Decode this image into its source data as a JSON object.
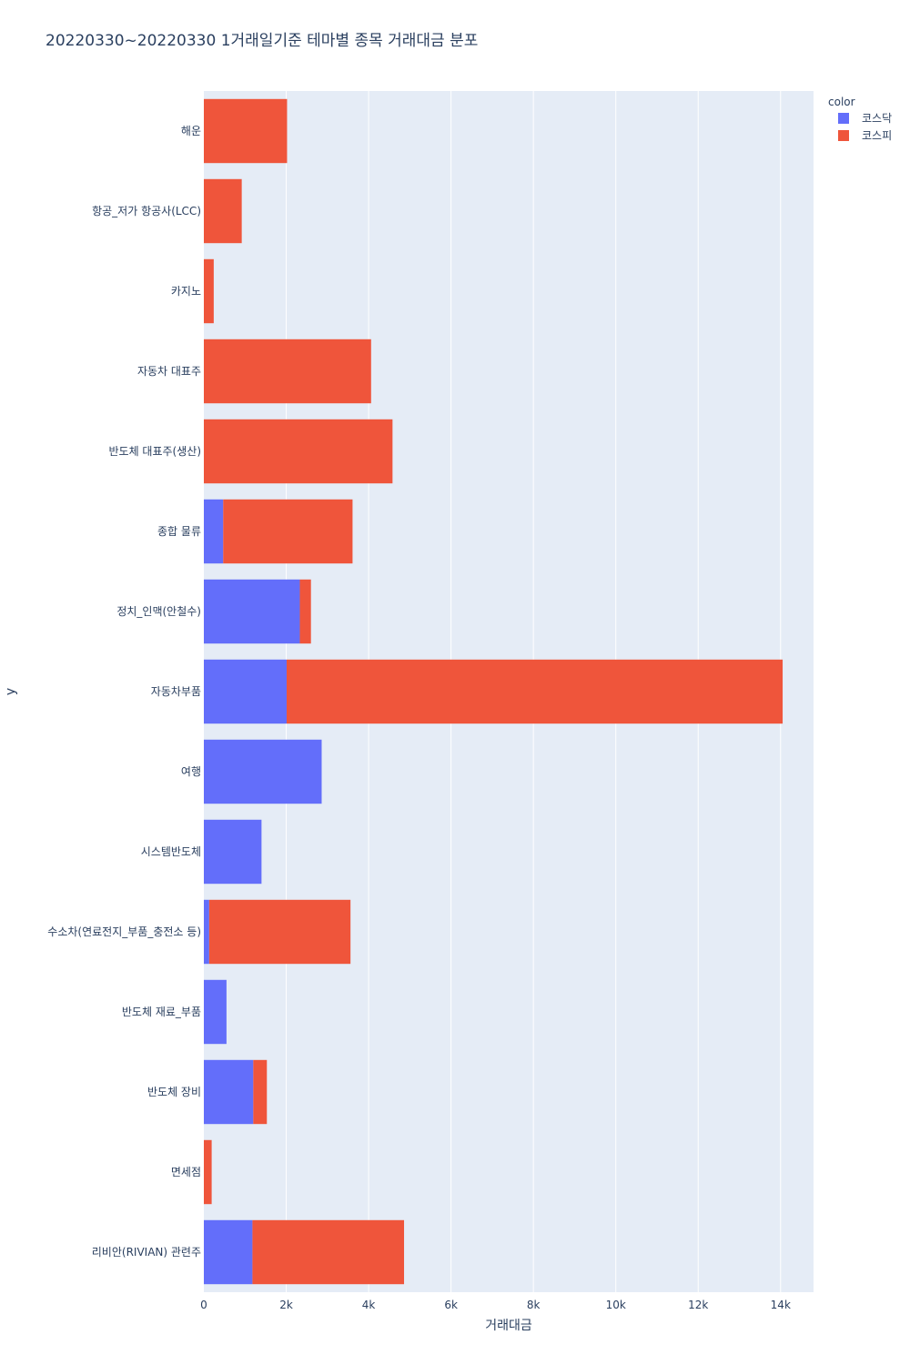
{
  "chart_data": {
    "type": "bar",
    "orientation": "horizontal",
    "barmode": "stack",
    "title": "20220330~20220330 1거래일기준 테마별 종목 거래대금 분포",
    "xlabel": "거래대금",
    "ylabel": "y",
    "xlim": [
      0,
      14800
    ],
    "xticks": [
      0,
      2000,
      4000,
      6000,
      8000,
      10000,
      12000,
      14000
    ],
    "xtick_labels": [
      "0",
      "2k",
      "4k",
      "6k",
      "8k",
      "10k",
      "12k",
      "14k"
    ],
    "categories": [
      "해운",
      "항공_저가 항공사(LCC)",
      "카지노",
      "자동차 대표주",
      "반도체 대표주(생산)",
      "종합 물류",
      "정치_인맥(안철수)",
      "자동차부품",
      "여행",
      "시스템반도체",
      "수소차(연료전지_부품_충전소 등)",
      "반도체 재료_부품",
      "반도체 장비",
      "면세점",
      "리비안(RIVIAN) 관련주"
    ],
    "series": [
      {
        "name": "코스닥",
        "color": "#636efa",
        "values": [
          0,
          0,
          0,
          0,
          0,
          470,
          2330,
          2010,
          2860,
          1400,
          130,
          550,
          1200,
          0,
          1180
        ]
      },
      {
        "name": "코스피",
        "color": "#ef553b",
        "values": [
          2020,
          920,
          240,
          4060,
          4580,
          3140,
          270,
          12040,
          0,
          0,
          3430,
          0,
          330,
          190,
          3680
        ]
      }
    ],
    "legend": {
      "title": "color",
      "position": "top-right"
    },
    "grid": true
  }
}
